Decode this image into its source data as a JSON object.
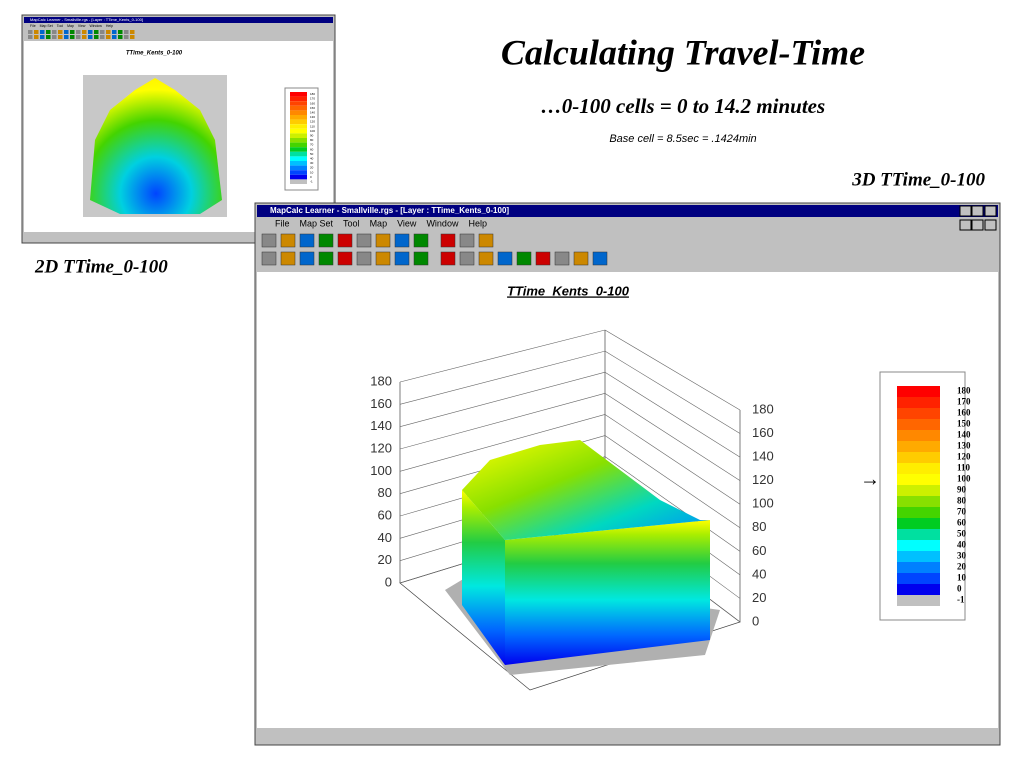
{
  "slide": {
    "title": "Calculating Travel-Time",
    "subtitle": "…0-100 cells = 0 to 14.2 minutes",
    "note": "Base cell = 8.5sec = .1424min",
    "label_3d": "3D TTime_0-100",
    "label_2d": "2D TTime_0-100",
    "arrow": "→"
  },
  "window": {
    "title": "MapCalc Learner - Smallville.rgs - [Layer : TTime_Kents_0-100]",
    "menus": [
      "File",
      "Map Set",
      "Tool",
      "Map",
      "View",
      "Window",
      "Help"
    ],
    "map_title": "TTime_Kents_0-100",
    "left_axis": [
      0,
      20,
      40,
      60,
      80,
      100,
      120,
      140,
      160,
      180
    ],
    "right_axis": [
      0,
      20,
      40,
      60,
      80,
      100,
      120,
      140,
      160,
      180
    ],
    "legend": [
      {
        "label": "180",
        "color": "#ff0000"
      },
      {
        "label": "170",
        "color": "#ff2200"
      },
      {
        "label": "160",
        "color": "#ff4400"
      },
      {
        "label": "150",
        "color": "#ff6600"
      },
      {
        "label": "140",
        "color": "#ff8800"
      },
      {
        "label": "130",
        "color": "#ffaa00"
      },
      {
        "label": "120",
        "color": "#ffcc00"
      },
      {
        "label": "110",
        "color": "#ffee00"
      },
      {
        "label": "100",
        "color": "#ffff00"
      },
      {
        "label": "90",
        "color": "#ccf000"
      },
      {
        "label": "80",
        "color": "#88e000"
      },
      {
        "label": "70",
        "color": "#44d400"
      },
      {
        "label": "60",
        "color": "#00cc22"
      },
      {
        "label": "50",
        "color": "#00e0a0"
      },
      {
        "label": "40",
        "color": "#00ffff"
      },
      {
        "label": "30",
        "color": "#00c0ff"
      },
      {
        "label": "20",
        "color": "#0080ff"
      },
      {
        "label": "10",
        "color": "#0044ff"
      },
      {
        "label": "0",
        "color": "#0000ee"
      },
      {
        "label": "-1",
        "color": "#c0c0c0"
      }
    ]
  }
}
